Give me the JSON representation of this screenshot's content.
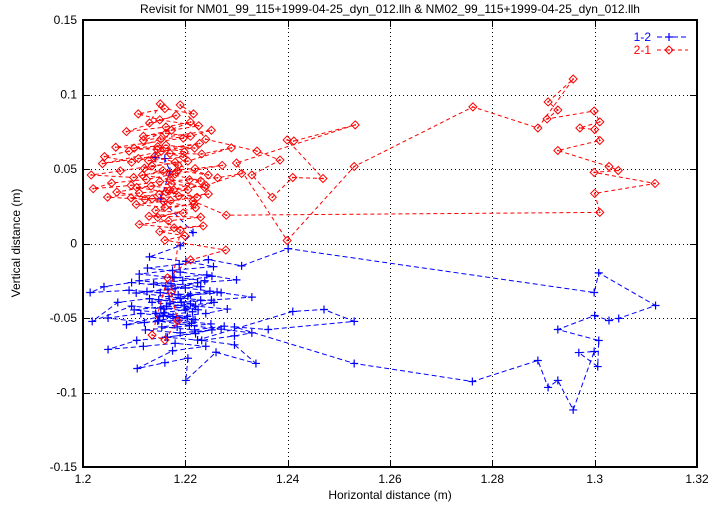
{
  "colors": {
    "background": "#ffffff",
    "frame": "#000000",
    "grid": "#000000",
    "series_1_2": "#0000ff",
    "series_2_1": "#ff0000"
  },
  "legend": {
    "position": "top-right",
    "entries": [
      {
        "label": "1-2",
        "color": "#0000ff",
        "marker": "plus"
      },
      {
        "label": "2-1",
        "color": "#ff0000",
        "marker": "diamond-dot"
      }
    ]
  },
  "chart_data": {
    "type": "scatter",
    "title": "Revisit for NM01_99_115+1999-04-25_dyn_012.llh & NM02_99_115+1999-04-25_dyn_012.llh",
    "xlabel": "Horizontal distance (m)",
    "ylabel": "Vertical distance (m)",
    "xlim": [
      1.2,
      1.32
    ],
    "ylim": [
      -0.15,
      0.15
    ],
    "x_tick_values": [
      1.2,
      1.22,
      1.24,
      1.26,
      1.28,
      1.3,
      1.32
    ],
    "x_tick_labels": [
      "1.2",
      "1.22",
      "1.24",
      "1.26",
      "1.28",
      "1.3",
      "1.32"
    ],
    "y_tick_values": [
      0.15,
      0.1,
      0.05,
      0,
      -0.05,
      -0.1,
      -0.15
    ],
    "y_tick_labels": [
      "0.15",
      "0.1",
      "0.05",
      "0",
      "-0.05",
      "-0.1",
      "-0.15"
    ],
    "grid": true,
    "linestyle": "dashed",
    "series": [
      {
        "name": "1-2",
        "color": "#0000ff",
        "marker": "plus",
        "points": [
          [
            1.2141,
            0.0577
          ],
          [
            1.216,
            0.057
          ],
          [
            1.217,
            0.0483
          ],
          [
            1.2152,
            0.03
          ],
          [
            1.2215,
            0.0074
          ],
          [
            1.219,
            -0.0015
          ],
          [
            1.213,
            -0.009
          ],
          [
            1.2201,
            -0.012
          ],
          [
            1.2255,
            -0.0155
          ],
          [
            1.2175,
            -0.018
          ],
          [
            1.211,
            -0.0205
          ],
          [
            1.2178,
            -0.023
          ],
          [
            1.2242,
            -0.021
          ],
          [
            1.23,
            -0.0244
          ],
          [
            1.2224,
            -0.0263
          ],
          [
            1.2162,
            -0.0286
          ],
          [
            1.2095,
            -0.0262
          ],
          [
            1.2041,
            -0.029
          ],
          [
            1.2014,
            -0.0329
          ],
          [
            1.209,
            -0.0314
          ],
          [
            1.2151,
            -0.033
          ],
          [
            1.221,
            -0.0345
          ],
          [
            1.227,
            -0.033
          ],
          [
            1.233,
            -0.036
          ],
          [
            1.2251,
            -0.038
          ],
          [
            1.2192,
            -0.0395
          ],
          [
            1.213,
            -0.037
          ],
          [
            1.2068,
            -0.0395
          ],
          [
            1.2018,
            -0.0523
          ],
          [
            1.2095,
            -0.042
          ],
          [
            1.2158,
            -0.044
          ],
          [
            1.222,
            -0.042
          ],
          [
            1.2282,
            -0.044
          ],
          [
            1.224,
            -0.047
          ],
          [
            1.2176,
            -0.049
          ],
          [
            1.2113,
            -0.047
          ],
          [
            1.2049,
            -0.05
          ],
          [
            1.212,
            -0.053
          ],
          [
            1.2188,
            -0.0515
          ],
          [
            1.225,
            -0.054
          ],
          [
            1.2184,
            -0.056
          ],
          [
            1.2122,
            -0.058
          ],
          [
            1.219,
            -0.06
          ],
          [
            1.2252,
            -0.058
          ],
          [
            1.2165,
            -0.063
          ],
          [
            1.2105,
            -0.065
          ],
          [
            1.2049,
            -0.0711
          ],
          [
            1.2118,
            -0.069
          ],
          [
            1.218,
            -0.067
          ],
          [
            1.224,
            -0.069
          ],
          [
            1.2175,
            -0.072
          ],
          [
            1.2106,
            -0.0839
          ],
          [
            1.216,
            -0.08
          ],
          [
            1.2205,
            -0.077
          ],
          [
            1.2201,
            -0.0919
          ],
          [
            1.226,
            -0.073
          ],
          [
            1.2338,
            -0.0805
          ],
          [
            1.2296,
            -0.068
          ],
          [
            1.2232,
            -0.065
          ],
          [
            1.2296,
            -0.062
          ],
          [
            1.233,
            -0.06
          ],
          [
            1.227,
            -0.0575
          ],
          [
            1.2208,
            -0.055
          ],
          [
            1.2146,
            -0.052
          ],
          [
            1.2085,
            -0.0545
          ],
          [
            1.215,
            -0.049
          ],
          [
            1.2215,
            -0.051
          ],
          [
            1.216,
            -0.0466
          ],
          [
            1.21,
            -0.0446
          ],
          [
            1.2163,
            -0.042
          ],
          [
            1.2225,
            -0.0445
          ],
          [
            1.217,
            -0.04
          ],
          [
            1.223,
            -0.038
          ],
          [
            1.2168,
            -0.0356
          ],
          [
            1.2104,
            -0.0332
          ],
          [
            1.2166,
            -0.031
          ],
          [
            1.223,
            -0.029
          ],
          [
            1.2172,
            -0.027
          ],
          [
            1.211,
            -0.025
          ],
          [
            1.2175,
            -0.0225
          ],
          [
            1.2238,
            -0.025
          ],
          [
            1.218,
            -0.03
          ],
          [
            1.2125,
            -0.0322
          ],
          [
            1.2186,
            -0.0345
          ],
          [
            1.2248,
            -0.032
          ],
          [
            1.219,
            -0.037
          ],
          [
            1.2135,
            -0.0395
          ],
          [
            1.2198,
            -0.042
          ],
          [
            1.2256,
            -0.0395
          ],
          [
            1.22,
            -0.0445
          ],
          [
            1.2142,
            -0.047
          ],
          [
            1.2204,
            -0.049
          ],
          [
            1.2148,
            -0.0515
          ],
          [
            1.2212,
            -0.0535
          ],
          [
            1.2154,
            -0.056
          ],
          [
            1.2218,
            -0.058
          ],
          [
            1.2276,
            -0.0555
          ],
          [
            1.222,
            -0.0605
          ],
          [
            1.2162,
            -0.0628
          ],
          [
            1.2224,
            -0.0648
          ],
          [
            1.241,
            -0.0456
          ],
          [
            1.2471,
            -0.0443
          ],
          [
            1.253,
            -0.0523
          ],
          [
            1.2362,
            -0.0577
          ],
          [
            1.2296,
            -0.056
          ],
          [
            1.253,
            -0.0805
          ],
          [
            1.2761,
            -0.0926
          ],
          [
            1.2889,
            -0.0785
          ],
          [
            1.2909,
            -0.0966
          ],
          [
            1.2928,
            -0.0919
          ],
          [
            1.2958,
            -0.1117
          ],
          [
            1.2999,
            -0.0725
          ],
          [
            1.2969,
            -0.0732
          ],
          [
            1.3006,
            -0.0826
          ],
          [
            1.3008,
            -0.0651
          ],
          [
            1.2928,
            -0.0577
          ],
          [
            1.3,
            -0.0483
          ],
          [
            1.3028,
            -0.0517
          ],
          [
            1.3047,
            -0.0503
          ],
          [
            1.3119,
            -0.0416
          ],
          [
            1.3008,
            -0.0197
          ],
          [
            1.2999,
            -0.0329
          ],
          [
            1.2401,
            -0.0034
          ],
          [
            1.231,
            -0.015
          ],
          [
            1.2245,
            -0.0108
          ],
          [
            1.2188,
            -0.014
          ],
          [
            1.2126,
            -0.0165
          ],
          [
            1.219,
            -0.0192
          ],
          [
            1.2252,
            -0.022
          ],
          [
            1.2195,
            -0.0248
          ],
          [
            1.2138,
            -0.0272
          ],
          [
            1.22,
            -0.0298
          ],
          [
            1.2262,
            -0.0325
          ],
          [
            1.2205,
            -0.0352
          ],
          [
            1.2148,
            -0.0378
          ],
          [
            1.221,
            -0.0405
          ],
          [
            1.2152,
            -0.0432
          ],
          [
            1.2214,
            -0.0458
          ],
          [
            1.2157,
            -0.0485
          ],
          [
            1.2219,
            -0.0512
          ]
        ]
      },
      {
        "name": "2-1",
        "color": "#ff0000",
        "marker": "diamond-dot",
        "points": [
          [
            1.2151,
            0.0937
          ],
          [
            1.213,
            0.0809
          ],
          [
            1.2182,
            0.086
          ],
          [
            1.2085,
            0.0751
          ],
          [
            1.2162,
            0.0782
          ],
          [
            1.221,
            0.0815
          ],
          [
            1.2118,
            0.0692
          ],
          [
            1.2251,
            0.076
          ],
          [
            1.2196,
            0.0707
          ],
          [
            1.2064,
            0.0646
          ],
          [
            1.2145,
            0.0631
          ],
          [
            1.2228,
            0.0672
          ],
          [
            1.2038,
            0.0536
          ],
          [
            1.2108,
            0.057
          ],
          [
            1.217,
            0.0604
          ],
          [
            1.2232,
            0.0601
          ],
          [
            1.229,
            0.0642
          ],
          [
            1.2205,
            0.0553
          ],
          [
            1.2135,
            0.0521
          ],
          [
            1.2073,
            0.0487
          ],
          [
            1.2016,
            0.046
          ],
          [
            1.2099,
            0.0443
          ],
          [
            1.2156,
            0.0489
          ],
          [
            1.2219,
            0.0503
          ],
          [
            1.2272,
            0.0524
          ],
          [
            1.218,
            0.0467
          ],
          [
            1.2124,
            0.043
          ],
          [
            1.2056,
            0.0406
          ],
          [
            1.202,
            0.0368
          ],
          [
            1.2094,
            0.039
          ],
          [
            1.215,
            0.0415
          ],
          [
            1.2208,
            0.0428
          ],
          [
            1.2263,
            0.0441
          ],
          [
            1.231,
            0.047
          ],
          [
            1.224,
            0.0389
          ],
          [
            1.2177,
            0.036
          ],
          [
            1.211,
            0.0339
          ],
          [
            1.2048,
            0.0311
          ],
          [
            1.2121,
            0.0296
          ],
          [
            1.2187,
            0.0318
          ],
          [
            1.2245,
            0.0332
          ],
          [
            1.2171,
            0.0288
          ],
          [
            1.2104,
            0.0262
          ],
          [
            1.216,
            0.0243
          ],
          [
            1.2217,
            0.0266
          ],
          [
            1.2142,
            0.0222
          ],
          [
            1.2196,
            0.0205
          ],
          [
            1.2129,
            0.0183
          ],
          [
            1.223,
            0.0177
          ],
          [
            1.2167,
            0.0152
          ],
          [
            1.211,
            0.0128
          ],
          [
            1.2178,
            0.0105
          ],
          [
            1.2235,
            0.0118
          ],
          [
            1.215,
            0.008
          ],
          [
            1.2199,
            0.0052
          ],
          [
            1.216,
            0.0022
          ],
          [
            1.2279,
            -0.0044
          ],
          [
            1.221,
            -0.011
          ],
          [
            1.2165,
            -0.023
          ],
          [
            1.2135,
            -0.0614
          ],
          [
            1.216,
            -0.0648
          ],
          [
            1.2185,
            -0.052
          ],
          [
            1.2172,
            -0.033
          ],
          [
            1.219,
            0.009
          ],
          [
            1.2146,
            0.0175
          ],
          [
            1.222,
            0.024
          ],
          [
            1.2135,
            0.03
          ],
          [
            1.2066,
            0.0345
          ],
          [
            1.2133,
            0.0385
          ],
          [
            1.2205,
            0.036
          ],
          [
            1.2149,
            0.033
          ],
          [
            1.2094,
            0.0306
          ],
          [
            1.2158,
            0.028
          ],
          [
            1.2223,
            0.031
          ],
          [
            1.2162,
            0.0346
          ],
          [
            1.2105,
            0.0376
          ],
          [
            1.2173,
            0.04
          ],
          [
            1.2238,
            0.0376
          ],
          [
            1.217,
            0.043
          ],
          [
            1.2116,
            0.046
          ],
          [
            1.2185,
            0.049
          ],
          [
            1.2245,
            0.046
          ],
          [
            1.2186,
            0.0525
          ],
          [
            1.2128,
            0.0556
          ],
          [
            1.2196,
            0.058
          ],
          [
            1.2153,
            0.062
          ],
          [
            1.2218,
            0.064
          ],
          [
            1.2162,
            0.066
          ],
          [
            1.21,
            0.064
          ],
          [
            1.2152,
            0.07
          ],
          [
            1.221,
            0.072
          ],
          [
            1.2162,
            0.074
          ],
          [
            1.2118,
            0.072
          ],
          [
            1.2173,
            0.076
          ],
          [
            1.2226,
            0.079
          ],
          [
            1.215,
            0.083
          ],
          [
            1.2108,
            0.087
          ],
          [
            1.216,
            0.0905
          ],
          [
            1.2216,
            0.087
          ],
          [
            1.219,
            0.093
          ],
          [
            1.224,
            0.07
          ],
          [
            1.234,
            0.062
          ],
          [
            1.2385,
            0.056
          ],
          [
            1.233,
            0.046
          ],
          [
            1.237,
            0.031
          ],
          [
            1.241,
            0.0443
          ],
          [
            1.2469,
            0.0436
          ],
          [
            1.2399,
            0.0695
          ],
          [
            1.2412,
            0.0688
          ],
          [
            1.2532,
            0.0796
          ],
          [
            1.23,
            0.054
          ],
          [
            1.2399,
            0.002
          ],
          [
            1.253,
            0.0517
          ],
          [
            1.2762,
            0.0917
          ],
          [
            1.2889,
            0.0775
          ],
          [
            1.2958,
            0.1104
          ],
          [
            1.2909,
            0.095
          ],
          [
            1.2928,
            0.0896
          ],
          [
            1.2907,
            0.0836
          ],
          [
            1.2999,
            0.0889
          ],
          [
            1.301,
            0.0816
          ],
          [
            1.2971,
            0.0775
          ],
          [
            1.3,
            0.0765
          ],
          [
            1.301,
            0.0691
          ],
          [
            1.2928,
            0.0624
          ],
          [
            1.3028,
            0.0517
          ],
          [
            1.3046,
            0.049
          ],
          [
            1.2999,
            0.0477
          ],
          [
            1.3118,
            0.0403
          ],
          [
            1.3,
            0.0336
          ],
          [
            1.301,
            0.0209
          ],
          [
            1.228,
            0.019
          ],
          [
            1.2215,
            0.0285
          ],
          [
            1.2168,
            0.0352
          ],
          [
            1.223,
            0.042
          ],
          [
            1.217,
            0.0465
          ],
          [
            1.212,
            0.0505
          ],
          [
            1.218,
            0.0545
          ],
          [
            1.214,
            0.0585
          ],
          [
            1.2095,
            0.0545
          ],
          [
            1.2042,
            0.0583
          ],
          [
            1.209,
            0.062
          ],
          [
            1.2146,
            0.065
          ],
          [
            1.2198,
            0.0615
          ]
        ]
      }
    ]
  }
}
